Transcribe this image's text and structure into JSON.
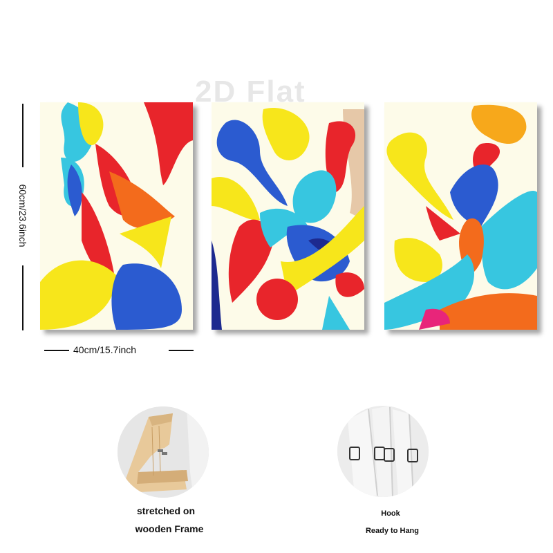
{
  "watermark": "2D Flat",
  "dimensions": {
    "height_label": "60cm/23.6inch",
    "width_label": "40cm/15.7inch"
  },
  "features": [
    {
      "caption_lines": [
        "stretched on",
        "wooden Frame"
      ],
      "icon": "wooden-frame-photo"
    },
    {
      "caption_lines": [
        "Hook",
        "Ready to Hang"
      ],
      "icon": "hanging-hook-photo"
    }
  ],
  "colors": {
    "yellow": "#f7e61b",
    "cyan": "#37c6e0",
    "blue": "#2b5bd0",
    "red": "#e8252b",
    "orange": "#f36b1c",
    "navy": "#1d2a8f",
    "canvas": "#fdfbe9"
  }
}
